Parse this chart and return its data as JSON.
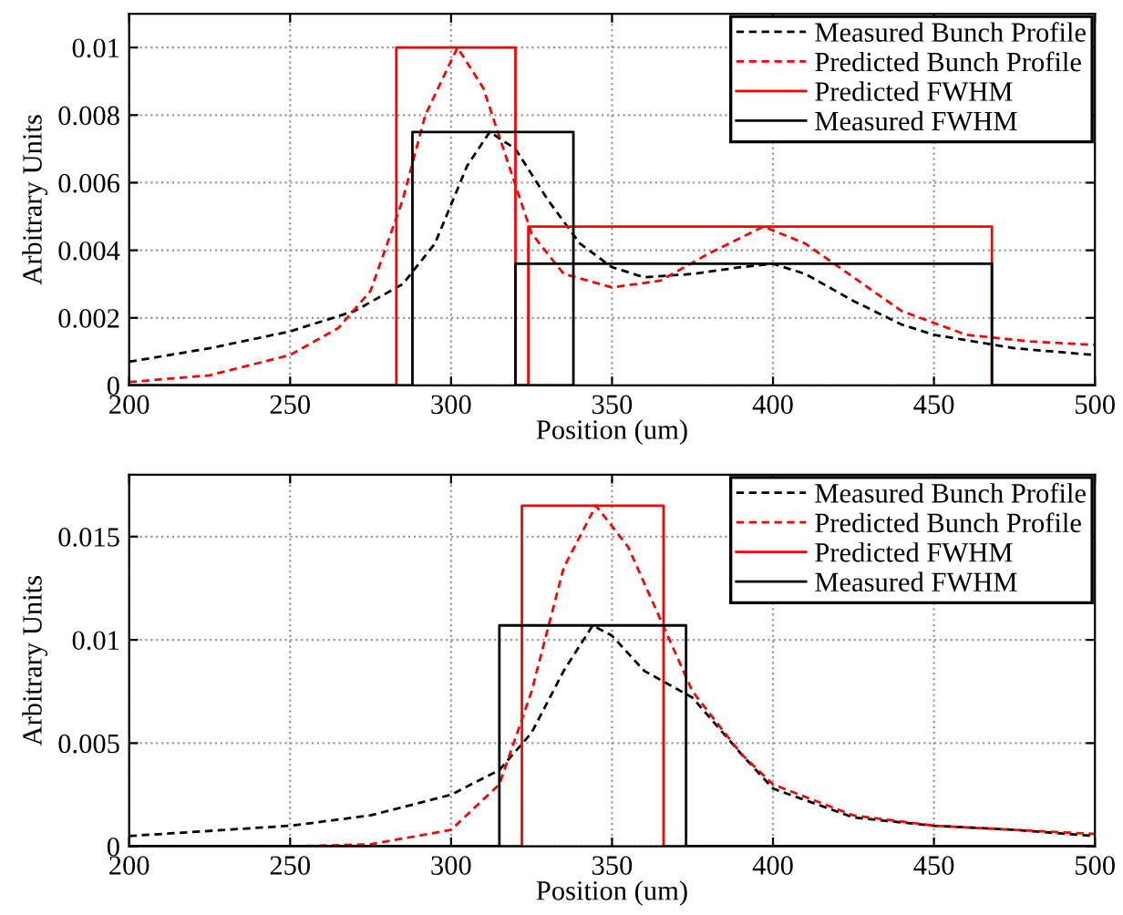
{
  "chart_data": [
    {
      "type": "line",
      "xlabel": "Position (um)",
      "ylabel": "Arbitrary Units",
      "xlim": [
        200,
        500
      ],
      "ylim": [
        0,
        0.011
      ],
      "xticks": [
        200,
        250,
        300,
        350,
        400,
        450,
        500
      ],
      "yticks": [
        0,
        0.002,
        0.004,
        0.006,
        0.008,
        0.01
      ],
      "grid": true,
      "legend": "top right",
      "series": [
        {
          "name": "Measured Bunch Profile",
          "color": "#000000",
          "line_style": "dashed",
          "x": [
            200,
            225,
            250,
            270,
            285,
            295,
            305,
            312,
            320,
            330,
            340,
            350,
            360,
            375,
            390,
            400,
            410,
            425,
            440,
            450,
            475,
            500
          ],
          "values": [
            0.0007,
            0.0011,
            0.0016,
            0.0022,
            0.003,
            0.0042,
            0.0065,
            0.0075,
            0.007,
            0.0055,
            0.0042,
            0.0035,
            0.0032,
            0.0033,
            0.0035,
            0.0036,
            0.0033,
            0.0025,
            0.0018,
            0.0015,
            0.0011,
            0.0009
          ]
        },
        {
          "name": "Predicted Bunch Profile",
          "color": "#ff0000",
          "line_style": "dashed",
          "x": [
            200,
            225,
            250,
            265,
            275,
            285,
            292,
            302,
            310,
            318,
            325,
            335,
            350,
            365,
            380,
            397,
            410,
            425,
            440,
            460,
            480,
            500
          ],
          "values": [
            0.0001,
            0.0003,
            0.0009,
            0.0017,
            0.0028,
            0.0055,
            0.008,
            0.01,
            0.0088,
            0.0065,
            0.0045,
            0.0033,
            0.0029,
            0.0031,
            0.0039,
            0.0047,
            0.0042,
            0.0032,
            0.0022,
            0.0015,
            0.0013,
            0.0012
          ]
        },
        {
          "name": "Predicted FWHM",
          "color": "#ff0000",
          "line_style": "solid",
          "x": [
            200,
            283,
            283,
            320,
            320,
            324,
            324,
            468,
            468,
            500
          ],
          "values": [
            0,
            0,
            0.01,
            0.01,
            0,
            0,
            0.0047,
            0.0047,
            0,
            0
          ]
        },
        {
          "name": "Measured FWHM",
          "color": "#000000",
          "line_style": "solid",
          "x": [
            200,
            288,
            288,
            338,
            338,
            320,
            320,
            468,
            468,
            500
          ],
          "values": [
            0,
            0,
            0.0075,
            0.0075,
            0,
            0,
            0.0036,
            0.0036,
            0,
            0
          ]
        }
      ]
    },
    {
      "type": "line",
      "xlabel": "Position (um)",
      "ylabel": "Arbitrary Units",
      "xlim": [
        200,
        500
      ],
      "ylim": [
        0,
        0.018
      ],
      "xticks": [
        200,
        250,
        300,
        350,
        400,
        450,
        500
      ],
      "yticks": [
        0,
        0.005,
        0.01,
        0.015
      ],
      "grid": true,
      "legend": "top right",
      "series": [
        {
          "name": "Measured Bunch Profile",
          "color": "#000000",
          "line_style": "dashed",
          "x": [
            200,
            250,
            275,
            300,
            315,
            325,
            335,
            344,
            350,
            360,
            375,
            390,
            400,
            425,
            450,
            475,
            500
          ],
          "values": [
            0.0005,
            0.001,
            0.0015,
            0.0025,
            0.0037,
            0.0055,
            0.0085,
            0.0107,
            0.0102,
            0.0085,
            0.0072,
            0.0045,
            0.0028,
            0.0014,
            0.001,
            0.0008,
            0.0005
          ]
        },
        {
          "name": "Predicted Bunch Profile",
          "color": "#ff0000",
          "line_style": "dashed",
          "x": [
            200,
            250,
            275,
            300,
            315,
            325,
            335,
            345,
            355,
            365,
            375,
            390,
            400,
            425,
            450,
            475,
            500
          ],
          "values": [
            0,
            0,
            0.0001,
            0.0008,
            0.003,
            0.0075,
            0.0135,
            0.0165,
            0.0145,
            0.011,
            0.0075,
            0.0045,
            0.003,
            0.0015,
            0.001,
            0.0008,
            0.0006
          ]
        },
        {
          "name": "Predicted FWHM",
          "color": "#ff0000",
          "line_style": "solid",
          "x": [
            200,
            322,
            322,
            366,
            366,
            500
          ],
          "values": [
            0,
            0,
            0.0165,
            0.0165,
            0,
            0
          ]
        },
        {
          "name": "Measured FWHM",
          "color": "#000000",
          "line_style": "solid",
          "x": [
            200,
            315,
            315,
            373,
            373,
            500
          ],
          "values": [
            0,
            0,
            0.0107,
            0.0107,
            0,
            0
          ]
        }
      ]
    }
  ]
}
